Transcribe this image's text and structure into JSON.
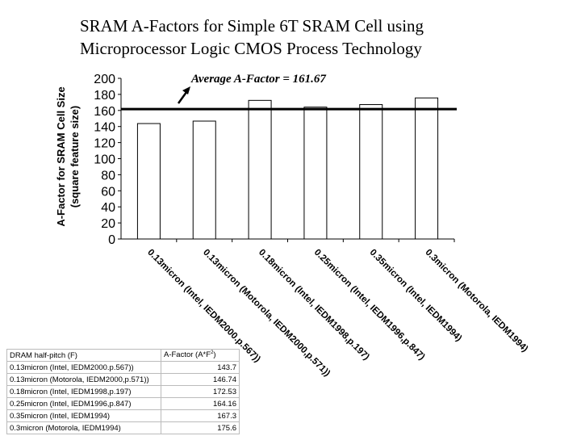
{
  "title_line1": "SRAM A-Factors for Simple 6T SRAM Cell using",
  "title_line2": "Microprocessor Logic CMOS Process Technology",
  "chart_data": {
    "type": "bar",
    "categories": [
      "0.13micron (Intel, IEDM2000.p.567))",
      "0.13micron (Motorola, IEDM2000,p.571))",
      "0.18micron (Intel, IEDM1998,p.197)",
      "0.25micron (Intel, IEDM1996,p.847)",
      "0.35micron (Intel, IEDM1994)",
      "0.3micron (Motorola, IEDM1994)"
    ],
    "values": [
      143.7,
      146.74,
      172.53,
      164.16,
      167.3,
      175.6
    ],
    "ylabel_line1": "A-Factor for SRAM Cell Size",
    "ylabel_line2": "(square feature size)",
    "ylim": [
      0,
      200
    ],
    "yticks": [
      0,
      20,
      40,
      60,
      80,
      100,
      120,
      140,
      160,
      180,
      200
    ],
    "average": 161.67,
    "annotation": "Average A-Factor = 161.67",
    "bar_color": "#ffffff",
    "grid": false
  },
  "table": {
    "headers": [
      "DRAM half-pitch (F)",
      "A-Factor (A*F",
      "2",
      ")"
    ],
    "rows": [
      [
        "0.13micron (Intel, IEDM2000.p.567))",
        "143.7"
      ],
      [
        "0.13micron (Motorola, IEDM2000,p.571))",
        "146.74"
      ],
      [
        "0.18micron (Intel, IEDM1998,p.197)",
        "172.53"
      ],
      [
        "0.25micron (Intel, IEDM1996,p.847)",
        "164.16"
      ],
      [
        "0.35micron (Intel, IEDM1994)",
        "167.3"
      ],
      [
        "0.3micron (Motorola, IEDM1994)",
        "175.6"
      ]
    ]
  }
}
